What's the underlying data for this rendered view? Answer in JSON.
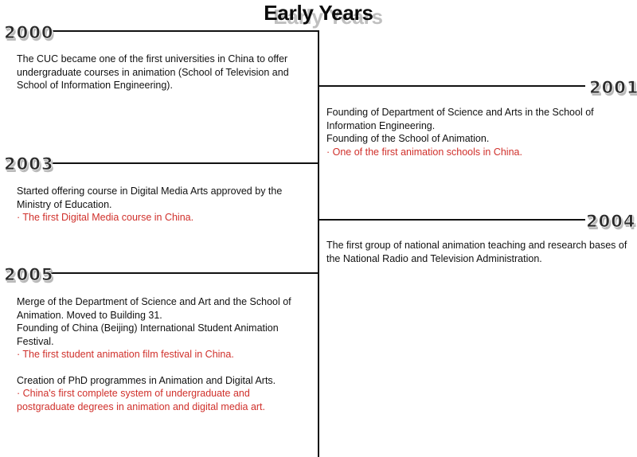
{
  "title": "Early Years",
  "timeline": [
    {
      "year": "2000",
      "lines": [
        "The CUC became one of the first universities in China to offer undergraduate courses in animation (School of Television and School of Information Engineering)."
      ],
      "highlights": []
    },
    {
      "year": "2001",
      "lines": [
        "Founding of Department of Science and Arts in the School of Information Engineering.",
        "Founding of the School of Animation."
      ],
      "highlights": [
        "· One of the first animation schools in China."
      ]
    },
    {
      "year": "2003",
      "lines": [
        "Started offering course in Digital Media Arts approved by the Ministry of Education."
      ],
      "highlights": [
        "· The first Digital Media course in China."
      ]
    },
    {
      "year": "2004",
      "lines": [
        "The first group of national animation teaching and research bases of the National Radio and Television Administration."
      ],
      "highlights": []
    },
    {
      "year": "2005",
      "lines": [
        "Merge of the Department of Science and Art and the School of Animation. Moved to Building 31.",
        "Founding of China (Beijing) International Student Animation Festival."
      ],
      "highlights": [
        "· The first student animation film festival in China."
      ],
      "extra_lines": [
        "Creation of PhD programmes in Animation and Digital Arts."
      ],
      "extra_highlights": [
        "· China's first complete system of undergraduate and postgraduate degrees in animation and digital media art."
      ]
    }
  ]
}
